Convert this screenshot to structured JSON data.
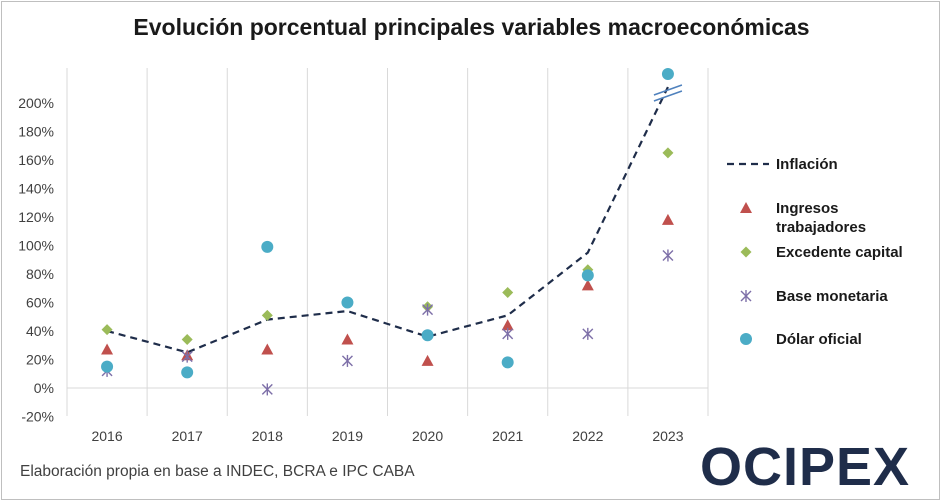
{
  "chart_data": {
    "type": "line",
    "title": "Evolución porcentual principales variables macroeconómicas",
    "xlabel": "",
    "ylabel": "",
    "categories": [
      "2016",
      "2017",
      "2018",
      "2019",
      "2020",
      "2021",
      "2022",
      "2023"
    ],
    "y_ticks": [
      "-20%",
      "0%",
      "20%",
      "40%",
      "60%",
      "80%",
      "100%",
      "120%",
      "140%",
      "160%",
      "180%",
      "200%"
    ],
    "ylim": [
      -20,
      200
    ],
    "axis_break": "above 200%",
    "grid": "vertical",
    "legend_position": "right",
    "series": [
      {
        "name": "Inflación",
        "style": "dashed-line",
        "color": "#1f2d4a",
        "values": [
          40,
          25,
          48,
          54,
          36,
          51,
          95,
          211
        ]
      },
      {
        "name": "Ingresos trabajadores",
        "style": "triangle",
        "color": "#c0504d",
        "values": [
          27,
          23,
          27,
          34,
          19,
          44,
          72,
          118
        ]
      },
      {
        "name": "Excedente capital",
        "style": "diamond",
        "color": "#9bbb59",
        "values": [
          41,
          34,
          51,
          60,
          57,
          67,
          83,
          165
        ]
      },
      {
        "name": "Base monetaria",
        "style": "star",
        "color": "#7d6fa8",
        "values": [
          12,
          22,
          -1,
          19,
          55,
          38,
          38,
          93
        ]
      },
      {
        "name": "Dólar oficial",
        "style": "circle",
        "color": "#4bacc6",
        "values": [
          15,
          11,
          99,
          60,
          37,
          18,
          79,
          220
        ]
      }
    ]
  },
  "legend_label_lines": {
    "Inflación": [
      "Inflación"
    ],
    "Ingresos trabajadores": [
      "Ingresos",
      "trabajadores"
    ],
    "Excedente capital": [
      "Excedente capital"
    ],
    "Base monetaria": [
      "Base monetaria"
    ],
    "Dólar oficial": [
      "Dólar oficial"
    ]
  },
  "source_note": "Elaboración propia en base a INDEC, BCRA e IPC CABA",
  "logo_text": "OCIPEX"
}
